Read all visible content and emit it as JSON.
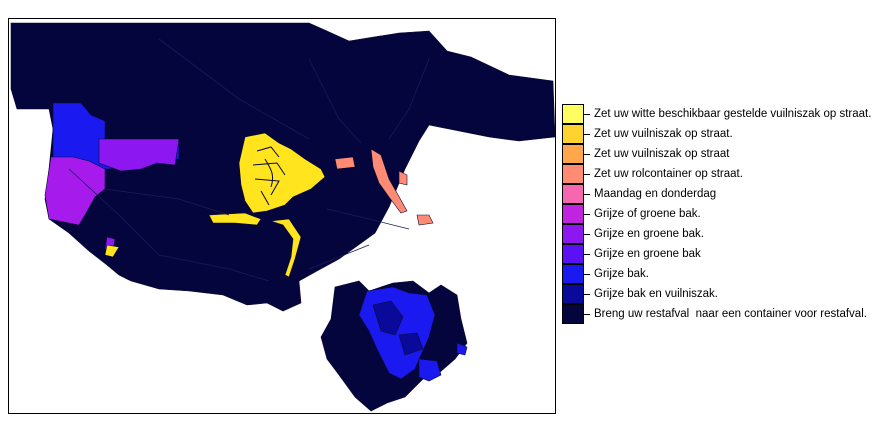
{
  "legend": {
    "items": [
      {
        "label": "Zet uw witte beschikbaar gestelde vuilniszak op straat.",
        "color": "#FFFF60"
      },
      {
        "label": "Zet uw vuilniszak op straat.",
        "color": "#FFD32F"
      },
      {
        "label": "Zet uw vuilniszak op straat",
        "color": "#FFA74A"
      },
      {
        "label": "Zet uw rolcontainer op straat.",
        "color": "#FF8B75"
      },
      {
        "label": "Maandag en donderdag",
        "color": "#F667B0"
      },
      {
        "label": "Grijze of groene bak.",
        "color": "#C024E0"
      },
      {
        "label": "Grijze en groene bak.",
        "color": "#8C17F0"
      },
      {
        "label": "Grijze en groene bak",
        "color": "#5A12F5"
      },
      {
        "label": "Grijze bak.",
        "color": "#1A1AF0"
      },
      {
        "label": "Grijze bak en vuilniszak.",
        "color": "#0A0A9A"
      },
      {
        "label": "Breng uw restafval  naar een container voor restafval.",
        "color": "#05053D"
      }
    ]
  },
  "map": {
    "base_color": "#05053D",
    "region_colors": {
      "center": "#FFE41E",
      "east_strip": "#FF8B75",
      "west_blue": "#1A1AF0",
      "west_purple": "#8C17F0",
      "west_violet": "#A61BEB",
      "southeast_blue": "#1A1AF0",
      "southeast_navy": "#0A0A9A"
    }
  }
}
